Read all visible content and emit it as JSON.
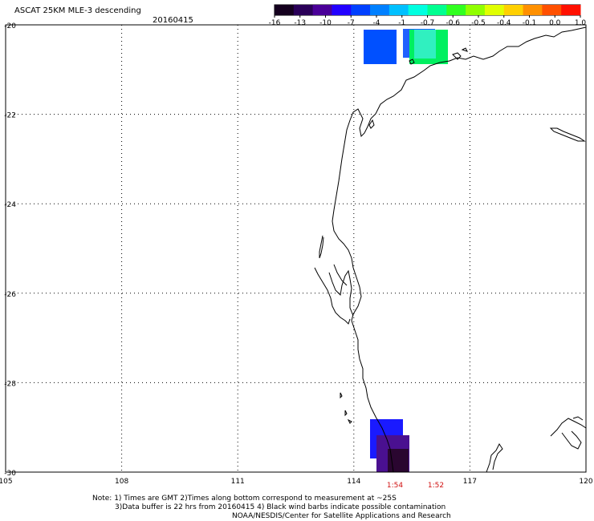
{
  "header": {
    "title": "ASCAT 25KM MLE-3 descending",
    "date": "20160415"
  },
  "colorbar": {
    "colors": [
      "#14001e",
      "#2a0058",
      "#4a0098",
      "#2200ff",
      "#0040ff",
      "#0080ff",
      "#00c0ff",
      "#00ffe0",
      "#00ff90",
      "#30ff20",
      "#90ff00",
      "#e0ff00",
      "#ffd000",
      "#ff9000",
      "#ff5000",
      "#ff1000"
    ],
    "labels": [
      "-16",
      "-13",
      "-10",
      "-7",
      "-4",
      "-1",
      "-0.7",
      "-0.6",
      "-0.5",
      "-0.4",
      "-0.1",
      "0.0",
      "1.0"
    ]
  },
  "map": {
    "lon_labels": [
      "105",
      "108",
      "111",
      "114",
      "117",
      "120"
    ],
    "lat_labels": [
      "-20",
      "-22",
      "-24",
      "-26",
      "-28",
      "-30"
    ],
    "swath_cells": [
      {
        "color": "#0050ff",
        "value_label": "-4"
      },
      {
        "color": "#2060ff",
        "value_label": "-1"
      },
      {
        "color": "#00f060",
        "value_label": "-0.6"
      },
      {
        "color": "#30f0c0",
        "value_label": "-0.7"
      },
      {
        "color": "#1a1aff",
        "value_label": "-7"
      },
      {
        "color": "#4a1090",
        "value_label": "-10"
      },
      {
        "color": "#2a0630",
        "value_label": "-16"
      }
    ],
    "time_labels": [
      "1:54",
      "1:52"
    ],
    "time_label_color": "#d01010"
  },
  "notes": [
    "Note: 1) Times are GMT 2)Times along bottom correspond to measurement at ~25S",
    "3)Data buffer is 22 hrs from 20160415 4) Black wind barbs indicate possible contamination",
    "NOAA/NESDIS/Center for Satellite Applications and Research"
  ]
}
